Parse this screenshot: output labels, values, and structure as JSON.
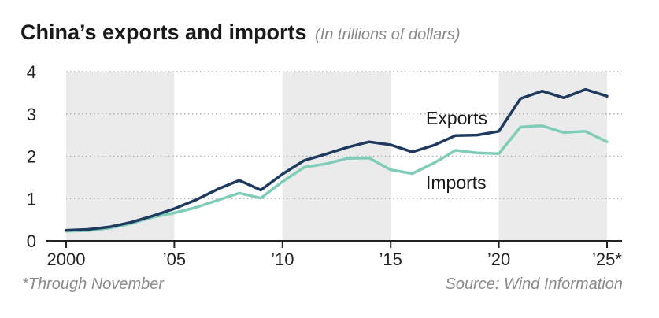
{
  "colors": {
    "exports": "#1f3a5f",
    "imports": "#7fcdb8",
    "shade": "#ebebeb",
    "grid": "#b0b0b0",
    "axis": "#222222"
  },
  "chart_data": {
    "type": "line",
    "title": "China’s exports and imports",
    "subtitle": "(In trillions of dollars)",
    "x": [
      2000,
      2001,
      2002,
      2003,
      2004,
      2005,
      2006,
      2007,
      2008,
      2009,
      2010,
      2011,
      2012,
      2013,
      2014,
      2015,
      2016,
      2017,
      2018,
      2019,
      2020,
      2021,
      2022,
      2023,
      2024,
      2025
    ],
    "series": [
      {
        "name": "Exports",
        "color": "#1f3a5f",
        "values": [
          0.25,
          0.27,
          0.33,
          0.44,
          0.59,
          0.76,
          0.97,
          1.22,
          1.43,
          1.2,
          1.58,
          1.9,
          2.05,
          2.21,
          2.34,
          2.27,
          2.1,
          2.26,
          2.49,
          2.5,
          2.59,
          3.36,
          3.54,
          3.38,
          3.58,
          3.42
        ]
      },
      {
        "name": "Imports",
        "color": "#7fcdb8",
        "values": [
          0.23,
          0.24,
          0.3,
          0.41,
          0.56,
          0.66,
          0.79,
          0.96,
          1.13,
          1.01,
          1.4,
          1.74,
          1.82,
          1.95,
          1.96,
          1.68,
          1.59,
          1.84,
          2.14,
          2.08,
          2.06,
          2.69,
          2.72,
          2.56,
          2.59,
          2.34
        ]
      }
    ],
    "xticks": [
      2000,
      2005,
      2010,
      2015,
      2020,
      2025
    ],
    "xtick_labels": [
      "2000",
      "’05",
      "’10",
      "’15",
      "’20",
      "’25*"
    ],
    "yticks": [
      0,
      1,
      2,
      3,
      4
    ],
    "ytick_labels": [
      "0",
      "1",
      "2",
      "3",
      "4"
    ],
    "xlim": [
      2000,
      2025
    ],
    "ylim": [
      0,
      4
    ],
    "shaded_ranges": [
      [
        2000,
        2005
      ],
      [
        2010,
        2015
      ],
      [
        2020,
        2025
      ]
    ],
    "grid": "horizontal dotted",
    "xlabel": "",
    "ylabel": ""
  },
  "footnote": "*Through November",
  "source": "Source: Wind Information"
}
